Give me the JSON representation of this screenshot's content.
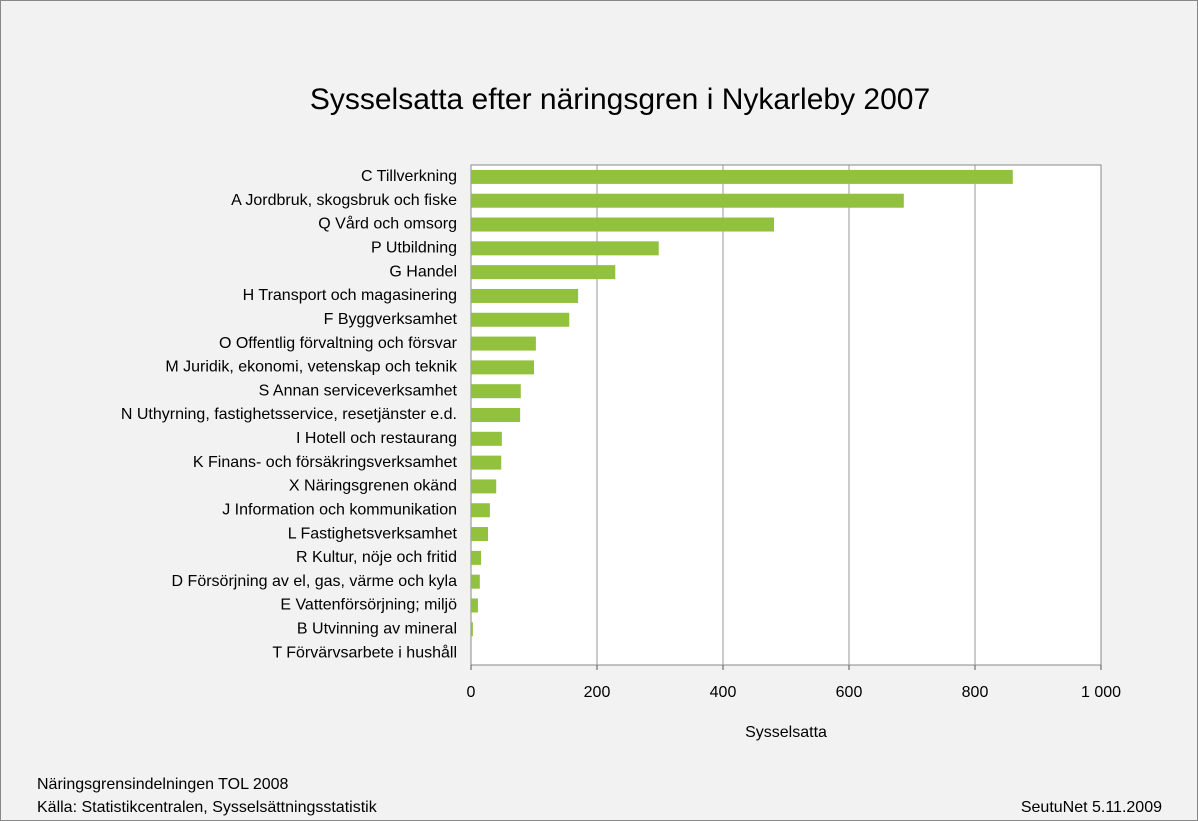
{
  "chart_data": {
    "type": "bar",
    "orientation": "horizontal",
    "title": "Sysselsatta  efter näringsgren i Nykarleby 2007",
    "x_label": "Sysselsatta",
    "categories": [
      "C Tillverkning",
      "A Jordbruk, skogsbruk och fiske",
      "Q Vård och omsorg",
      "P Utbildning",
      "G Handel",
      "H Transport och magasinering",
      "F Byggverksamhet",
      "O Offentlig förvaltning och försvar",
      "M Juridik, ekonomi, vetenskap och teknik",
      "S Annan serviceverksamhet",
      "N Uthyrning, fastighetsservice, resetjänster e.d.",
      "I Hotell och restaurang",
      "K Finans- och försäkringsverksamhet",
      "X Näringsgrenen okänd",
      "J Information och kommunikation",
      "L Fastighetsverksamhet",
      "R Kultur, nöje och fritid",
      "D Försörjning av el, gas, värme och kyla",
      "E Vattenförsörjning; miljö",
      "B Utvinning av mineral",
      "T Förvärvsarbete i hushåll"
    ],
    "values": [
      860,
      687,
      481,
      298,
      229,
      170,
      156,
      103,
      100,
      79,
      78,
      49,
      48,
      40,
      30,
      27,
      16,
      14,
      11,
      3,
      0
    ],
    "color": "#92c13e",
    "xlim": [
      0,
      1000
    ],
    "xticks": [
      0,
      200,
      400,
      600,
      800,
      {
        "value": 1000,
        "label": "1 000"
      }
    ],
    "grid": true,
    "notes": [
      "Näringsgrensindelningen TOL 2008",
      "Källa:  Statistikcentralen, Sysselsättningsstatistik"
    ],
    "credit": "SeutuNet 5.11.2009"
  }
}
